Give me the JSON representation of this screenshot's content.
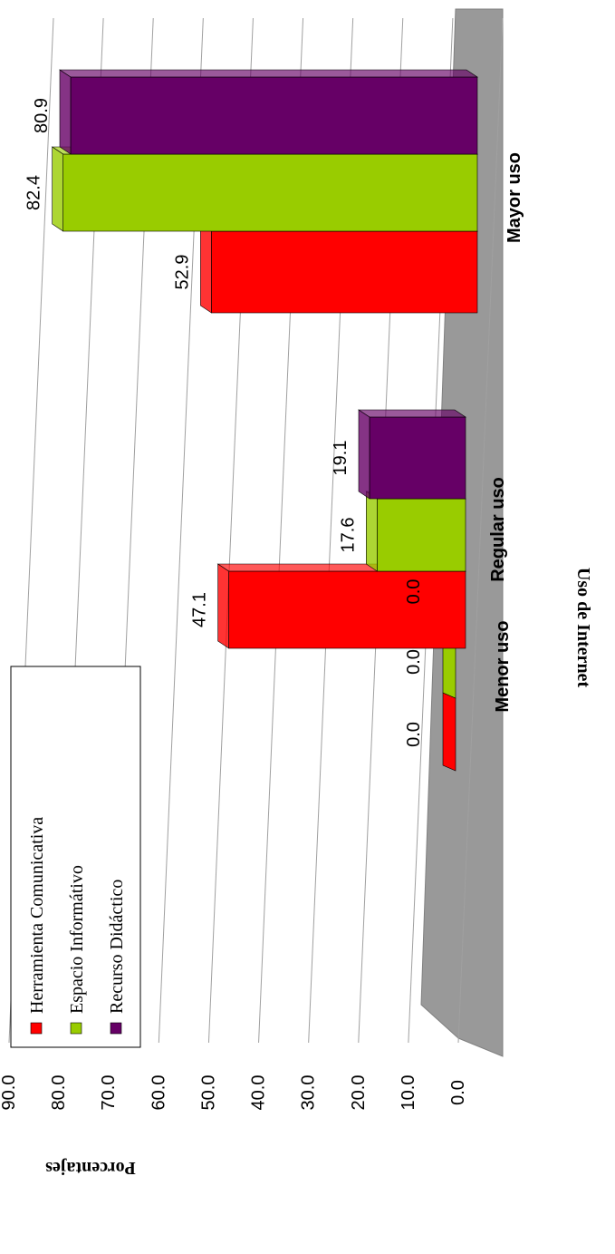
{
  "chart_data": {
    "type": "bar",
    "orientation": "3d-column-rotated",
    "categories": [
      "Menor uso",
      "Regular uso",
      "Mayor uso"
    ],
    "series": [
      {
        "name": "Herramienta Comunicativa",
        "values": [
          0.0,
          47.1,
          52.9
        ],
        "color": "#ff0000"
      },
      {
        "name": "Espacio Informátivo",
        "values": [
          0.0,
          17.6,
          82.4
        ],
        "color": "#99cc00"
      },
      {
        "name": "Recurso Didáctico",
        "values": [
          0.0,
          19.1,
          80.9
        ],
        "color": "#660066"
      }
    ],
    "ylabel": "Porcentajes",
    "xlabel": "Uso de Internet",
    "ylim": [
      0,
      90
    ],
    "yticks": [
      "0.0",
      "10.0",
      "20.0",
      "30.0",
      "40.0",
      "50.0",
      "60.0",
      "70.0",
      "80.0",
      "90.0"
    ],
    "grid": true,
    "legend_position": "top-left"
  }
}
